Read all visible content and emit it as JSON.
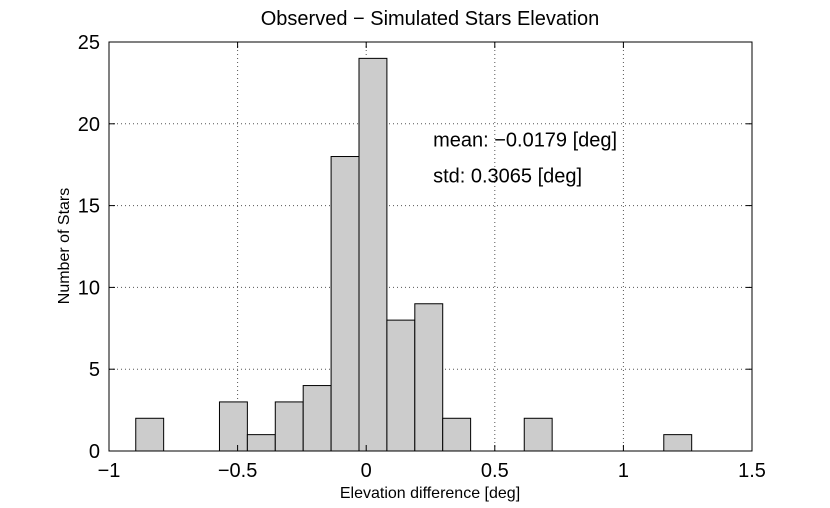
{
  "chart_data": {
    "type": "bar",
    "title": "Observed − Simulated Stars Elevation",
    "xlabel": "Elevation difference [deg]",
    "ylabel": "Number of Stars",
    "xlim": [
      -1,
      1.5
    ],
    "ylim": [
      0,
      25
    ],
    "xticks": [
      -1,
      -0.5,
      0,
      0.5,
      1,
      1.5
    ],
    "xtick_labels": [
      "−1",
      "−0.5",
      "0",
      "0.5",
      "1",
      "1.5"
    ],
    "yticks": [
      0,
      5,
      10,
      15,
      20,
      25
    ],
    "ytick_labels": [
      "0",
      "5",
      "10",
      "15",
      "20",
      "25"
    ],
    "grid": true,
    "bins": [
      {
        "left": -0.896,
        "right": -0.7875,
        "value": 2
      },
      {
        "left": -0.5705,
        "right": -0.462,
        "value": 3
      },
      {
        "left": -0.462,
        "right": -0.3535,
        "value": 1
      },
      {
        "left": -0.3535,
        "right": -0.245,
        "value": 3
      },
      {
        "left": -0.245,
        "right": -0.1365,
        "value": 4
      },
      {
        "left": -0.1365,
        "right": -0.028,
        "value": 18
      },
      {
        "left": -0.028,
        "right": 0.0805,
        "value": 24
      },
      {
        "left": 0.0805,
        "right": 0.189,
        "value": 8
      },
      {
        "left": 0.189,
        "right": 0.2975,
        "value": 9
      },
      {
        "left": 0.2975,
        "right": 0.406,
        "value": 2
      },
      {
        "left": 0.6145,
        "right": 0.723,
        "value": 2
      },
      {
        "left": 1.157,
        "right": 1.2655,
        "value": 1
      }
    ],
    "bar_fill": "#cccccc",
    "bar_edge": "#000000",
    "annotations": [
      {
        "text": "mean: −0.0179 [deg]",
        "x": 0.26,
        "y": 18.6
      },
      {
        "text": "std: 0.3065 [deg]",
        "x": 0.26,
        "y": 16.4
      }
    ]
  }
}
